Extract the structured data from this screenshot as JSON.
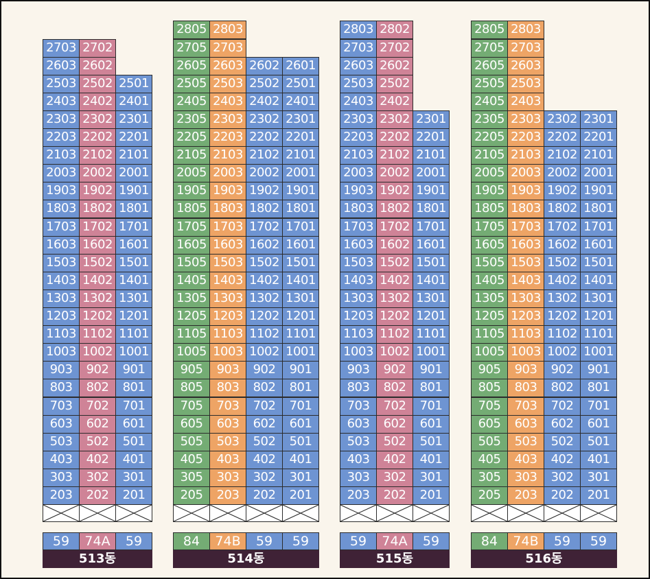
{
  "colors": {
    "59": "#6e94d2",
    "74A": "#cf8397",
    "84": "#74ac74",
    "74B": "#eea465",
    "label_bg": "#3f2236"
  },
  "buildings": [
    {
      "name": "513동",
      "columns": [
        {
          "type": "59",
          "suffix": "03",
          "top": 27
        },
        {
          "type": "74A",
          "suffix": "02",
          "top": 27
        },
        {
          "type": "59",
          "suffix": "01",
          "top": 25
        }
      ]
    },
    {
      "name": "514동",
      "columns": [
        {
          "type": "84",
          "suffix": "05",
          "top": 28
        },
        {
          "type": "74B",
          "suffix": "03",
          "top": 28
        },
        {
          "type": "59",
          "suffix": "02",
          "top": 26
        },
        {
          "type": "59",
          "suffix": "01",
          "top": 26
        }
      ]
    },
    {
      "name": "515동",
      "columns": [
        {
          "type": "59",
          "suffix": "03",
          "top": 28
        },
        {
          "type": "74A",
          "suffix": "02",
          "top": 28
        },
        {
          "type": "59",
          "suffix": "01",
          "top": 23
        }
      ]
    },
    {
      "name": "516동",
      "columns": [
        {
          "type": "84",
          "suffix": "05",
          "top": 28
        },
        {
          "type": "74B",
          "suffix": "03",
          "top": 28
        },
        {
          "type": "59",
          "suffix": "02",
          "top": 23
        },
        {
          "type": "59",
          "suffix": "01",
          "top": 23
        }
      ]
    }
  ]
}
